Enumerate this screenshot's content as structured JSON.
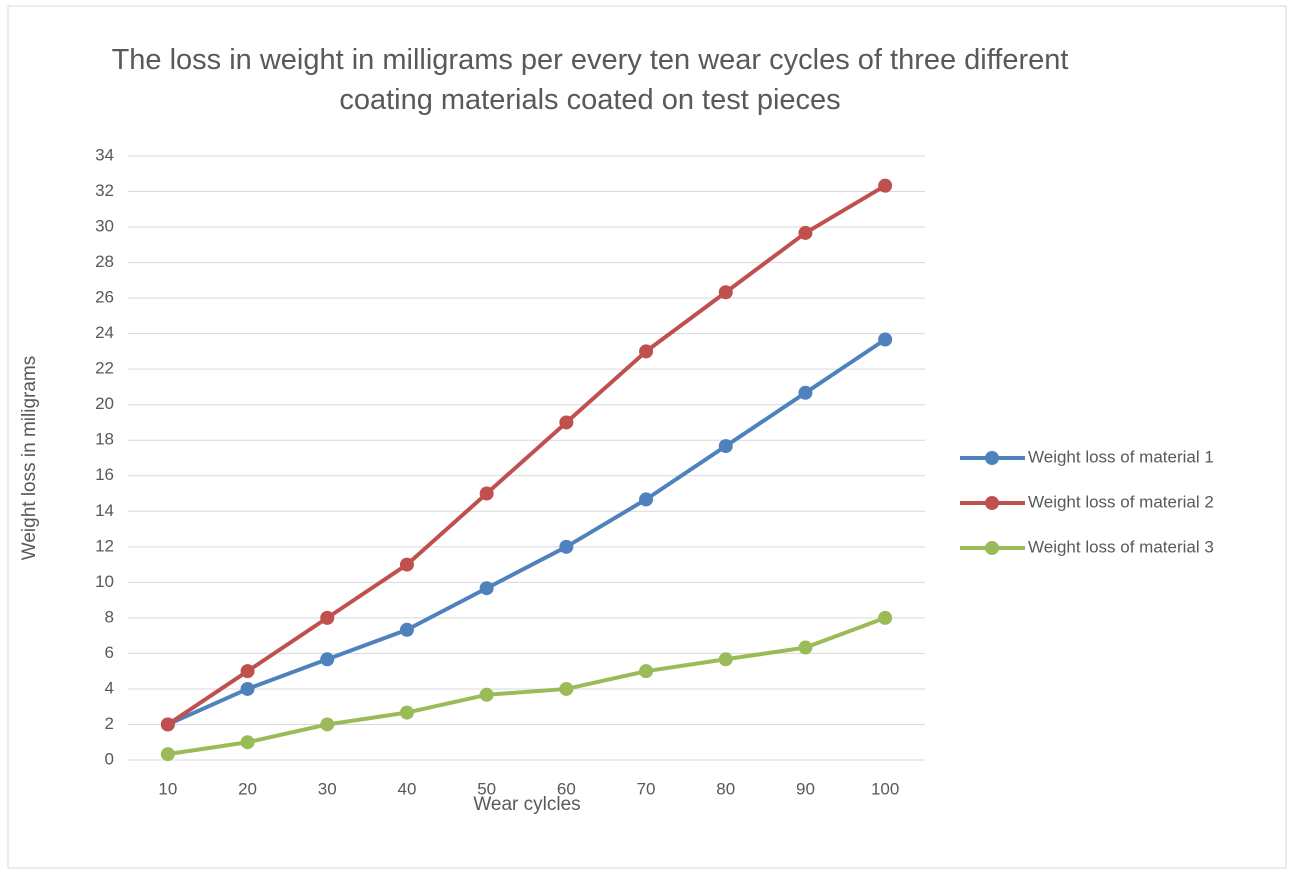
{
  "chart_data": {
    "type": "line",
    "title": "The loss in weight in milligrams per every ten wear cycles of three different coating materials coated on test pieces",
    "x_label": "Wear cylcles",
    "y_label": "Weight loss in miligrams",
    "categories": [
      10,
      20,
      30,
      40,
      50,
      60,
      70,
      80,
      90,
      100
    ],
    "series": [
      {
        "name": "Weight loss of material 1",
        "color": "#4f81bd",
        "values": [
          2,
          4,
          5.67,
          7.33,
          9.67,
          12,
          14.67,
          17.67,
          20.67,
          23.67
        ]
      },
      {
        "name": "Weight loss of material 2",
        "color": "#c0504d",
        "values": [
          2,
          5,
          8,
          11,
          15,
          19,
          23,
          26.33,
          29.67,
          32.33
        ]
      },
      {
        "name": "Weight loss of material 3",
        "color": "#9bbb59",
        "values": [
          0.33,
          1,
          2,
          2.67,
          3.67,
          4,
          5,
          5.67,
          6.33,
          8
        ]
      }
    ],
    "ylim": [
      0,
      34
    ],
    "yticks": [
      0,
      2,
      4,
      6,
      8,
      10,
      12,
      14,
      16,
      18,
      20,
      22,
      24,
      26,
      28,
      30,
      32,
      34
    ],
    "grid": true,
    "legend": "right"
  }
}
